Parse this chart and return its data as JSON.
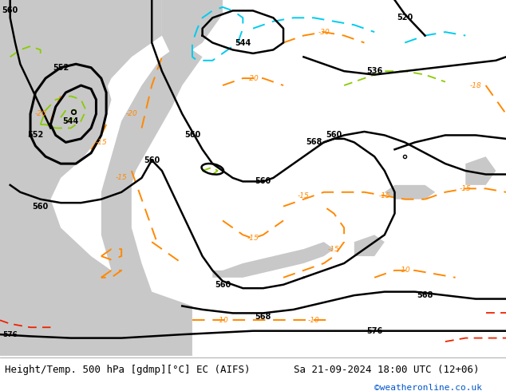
{
  "title_left": "Height/Temp. 500 hPa [gdmp][°C] EC (AIFS)",
  "title_right": "Sa 21-09-2024 18:00 UTC (12+06)",
  "credit": "©weatheronline.co.uk",
  "fig_width": 6.34,
  "fig_height": 4.9,
  "dpi": 100,
  "bottom_bar_color": "#ffffff",
  "title_fontsize": 9.0,
  "credit_fontsize": 8.0,
  "credit_color": "#0055cc",
  "map_green": "#c8e0a0",
  "map_gray": "#c8c8c8",
  "map_gray2": "#b8b8b8"
}
